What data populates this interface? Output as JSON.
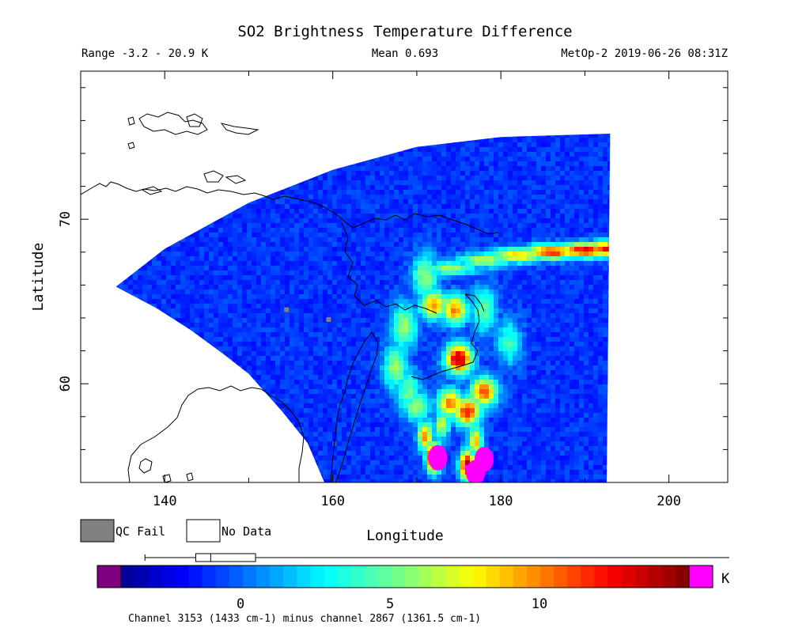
{
  "chart_data": {
    "type": "heatmap",
    "title": "SO2 Brightness Temperature Difference",
    "range_text": "Range -3.2 - 20.9 K",
    "mean_text": "Mean 0.693",
    "satellite_text": "MetOp-2 2019-06-26 08:31Z",
    "xlabel": "Longitude",
    "ylabel": "Latitude",
    "xlim": [
      130,
      207
    ],
    "ylim": [
      54,
      79
    ],
    "x_ticks": [
      140,
      160,
      180,
      200
    ],
    "x_tick_labels": [
      "140",
      "160",
      "180",
      "200"
    ],
    "y_ticks": [
      60,
      70
    ],
    "y_tick_labels": [
      "60",
      "70"
    ],
    "legend": {
      "qc_fail_label": "QC Fail",
      "qc_fail_color": "#808080",
      "no_data_label": "No Data",
      "no_data_color": "#ffffff"
    },
    "colorbar": {
      "vmin": -4,
      "vmax": 15,
      "ticks": [
        0,
        5,
        10
      ],
      "tick_labels": [
        "0",
        "5",
        "10"
      ],
      "unit": "K",
      "under_color": "#7f007f",
      "over_color": "#ff00ff",
      "box_whisker": {
        "min": -3.2,
        "q1": -1.5,
        "median": -1.0,
        "q3": 0.5,
        "max": 20.9
      }
    },
    "footnote": "Channel 3153 (1433 cm-1) minus channel 2867 (1361.5 cm-1)",
    "swath": {
      "west_edge": [
        [
          134.2,
          65.9
        ],
        [
          139,
          64.6
        ],
        [
          143,
          63.3
        ],
        [
          147,
          61.8
        ],
        [
          150,
          60.6
        ],
        [
          154,
          58.3
        ],
        [
          157,
          56.4
        ],
        [
          159,
          54
        ]
      ],
      "north_edge": [
        [
          134.2,
          65.9
        ],
        [
          140,
          68.2
        ],
        [
          150,
          71.0
        ],
        [
          160,
          73.0
        ],
        [
          170,
          74.4
        ],
        [
          180,
          75.0
        ],
        [
          193,
          75.2
        ]
      ],
      "east_edge": [
        [
          193,
          75.2
        ],
        [
          192.6,
          54
        ]
      ],
      "background_value": -1.0
    },
    "plume": {
      "band": [
        [
          182,
          67.8,
          9
        ],
        [
          186,
          68.0,
          12
        ],
        [
          190,
          68.1,
          13
        ],
        [
          193,
          68.2,
          13
        ],
        [
          178,
          67.5,
          7
        ],
        [
          174,
          67.0,
          6
        ]
      ],
      "core": [
        [
          172,
          64.8,
          10
        ],
        [
          174.5,
          64.5,
          10
        ],
        [
          175,
          61.5,
          14
        ],
        [
          178,
          59.5,
          11
        ],
        [
          176,
          58.3,
          12
        ],
        [
          174,
          58.8,
          10
        ],
        [
          170,
          58.6,
          6
        ]
      ],
      "ring": [
        [
          168.5,
          63.5,
          6
        ],
        [
          167.5,
          61,
          6
        ],
        [
          169,
          59.5,
          5
        ],
        [
          171,
          66.5,
          6
        ],
        [
          178,
          64.5,
          5
        ],
        [
          181,
          62.5,
          4
        ]
      ],
      "tail": [
        [
          177,
          56.5,
          9
        ],
        [
          176,
          55,
          15
        ],
        [
          172,
          55.5,
          15
        ],
        [
          171,
          56.8,
          10
        ],
        [
          173,
          57.5,
          7
        ]
      ],
      "saturated_points": [
        [
          172.5,
          55.5
        ],
        [
          177,
          54.6
        ],
        [
          178,
          55.4
        ]
      ]
    }
  }
}
